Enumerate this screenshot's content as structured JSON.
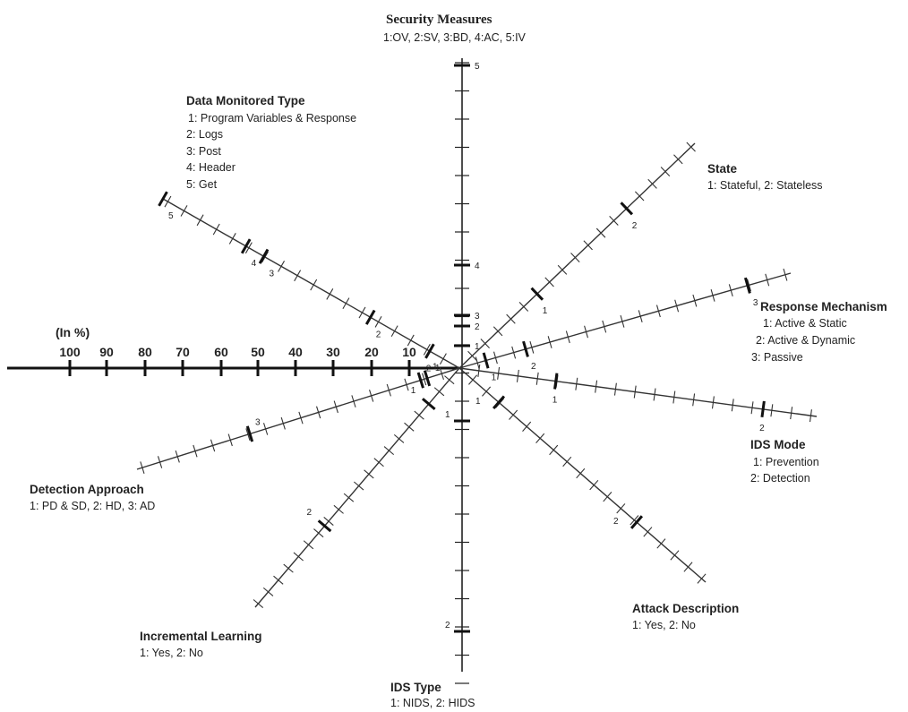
{
  "chart_data": {
    "type": "radial-axes-diagram",
    "scale": {
      "title": "(In %)",
      "ticks": [
        "100",
        "90",
        "80",
        "70",
        "60",
        "50",
        "40",
        "30",
        "20",
        "10"
      ]
    },
    "axes": [
      {
        "id": "security-measures",
        "title": "Security Measures",
        "legend": [
          "1:OV, 2:SV, 3:BD, 4:AC, 5:IV"
        ],
        "marks": [
          {
            "label": "1",
            "value": 10
          },
          {
            "label": "2",
            "value": 20
          },
          {
            "label": "3",
            "value": 24
          },
          {
            "label": "4",
            "value": 40
          },
          {
            "label": "5",
            "value": 100
          }
        ]
      },
      {
        "id": "state",
        "title": "State",
        "legend": [
          "1: Stateful, 2: Stateless"
        ],
        "marks": [
          {
            "label": "1",
            "value": 33
          },
          {
            "label": "2",
            "value": 71
          }
        ]
      },
      {
        "id": "response-mechanism",
        "title": "Response Mechanism",
        "legend": [
          "1: Active & Static",
          "2: Active & Dynamic",
          "3: Passive"
        ],
        "marks": [
          {
            "label": "1",
            "value": 8
          },
          {
            "label": "2",
            "value": 20
          },
          {
            "label": "3",
            "value": 87
          }
        ]
      },
      {
        "id": "ids-mode",
        "title": "IDS Mode",
        "legend": [
          "1: Prevention",
          "2: Detection"
        ],
        "marks": [
          {
            "label": "1",
            "value": 27
          },
          {
            "label": "2",
            "value": 85
          }
        ]
      },
      {
        "id": "attack-description",
        "title": "Attack Description",
        "legend": [
          "1: Yes, 2: No"
        ],
        "marks": [
          {
            "label": "1",
            "value": 16
          },
          {
            "label": "2",
            "value": 72
          }
        ]
      },
      {
        "id": "ids-type",
        "title": "IDS Type",
        "legend": [
          "1: NIDS, 2: HIDS"
        ],
        "marks": [
          {
            "label": "1",
            "value": 15
          },
          {
            "label": "2",
            "value": 85
          }
        ]
      },
      {
        "id": "incremental-learning",
        "title": "Incremental Learning",
        "legend": [
          "1: Yes, 2: No"
        ],
        "marks": [
          {
            "label": "1",
            "value": 15
          },
          {
            "label": "2",
            "value": 66
          }
        ]
      },
      {
        "id": "detection-approach",
        "title": "Detection Approach",
        "legend": [
          "1: PD & SD, 2: HD, 3: AD"
        ],
        "marks": [
          {
            "label": "1",
            "value": 10
          },
          {
            "label": "2",
            "value": 12
          },
          {
            "label": "3",
            "value": 65
          }
        ]
      },
      {
        "id": "data-monitored-type",
        "title": "Data Monitored Type",
        "legend": [
          "1: Program Variables & Response",
          "2: Logs",
          "3: Post",
          "4: Header",
          "5: Get"
        ],
        "marks": [
          {
            "label": "1",
            "value": 10
          },
          {
            "label": "2",
            "value": 30
          },
          {
            "label": "3",
            "value": 66
          },
          {
            "label": "4",
            "value": 72
          },
          {
            "label": "5",
            "value": 100
          }
        ]
      }
    ]
  }
}
